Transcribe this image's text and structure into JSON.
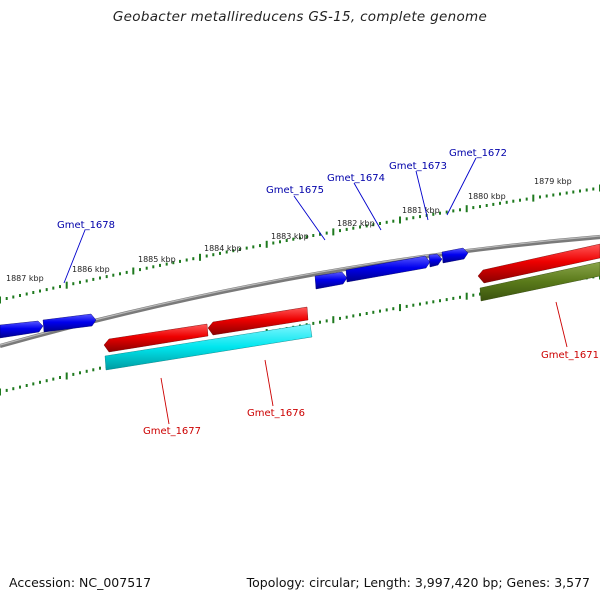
{
  "title": "Geobacter metallireducens GS-15, complete genome",
  "footer": {
    "accession": "Accession: NC_007517",
    "stats": "Topology: circular; Length: 3,997,420 bp; Genes: 3,577"
  },
  "colors": {
    "forward_gene": "#0000ee",
    "reverse_gene": "#ee0000",
    "rna_gene": "#00e6ee",
    "other_feature": "#5a7a1a",
    "backbone": "#808080",
    "ticks": "#1f7a1f",
    "forward_label": "#0000aa",
    "reverse_label": "#cc0000"
  },
  "scale": {
    "labels": [
      "1887 kbp",
      "1886 kbp",
      "1885 kbp",
      "1884 kbp",
      "1883 kbp",
      "1882 kbp",
      "1881 kbp",
      "1880 kbp",
      "1879 kbp"
    ]
  },
  "genes": {
    "forward": [
      "Gmet_1678",
      "Gmet_1675",
      "Gmet_1674",
      "Gmet_1673",
      "Gmet_1672"
    ],
    "reverse": [
      "Gmet_1677",
      "Gmet_1676",
      "Gmet_1671"
    ]
  }
}
